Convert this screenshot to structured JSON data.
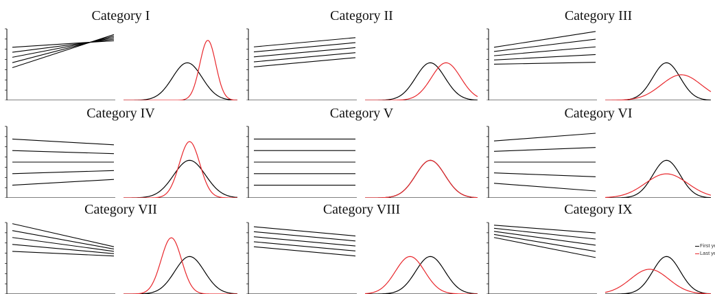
{
  "colors": {
    "first_year": "#000000",
    "last_year": "#e8262b",
    "axis": "#000000"
  },
  "legend": {
    "first_year_label": "First year",
    "last_year_label": "Last year"
  },
  "categories": [
    {
      "title": "Category I",
      "trend_lines": [
        {
          "start": 0.45,
          "end": 0.62
        },
        {
          "start": 0.32,
          "end": 0.66
        },
        {
          "start": 0.19,
          "end": 0.7
        },
        {
          "start": 0.05,
          "end": 0.74
        },
        {
          "start": -0.08,
          "end": 0.78
        }
      ],
      "first_year": {
        "mean": 0.56,
        "sd": 0.13,
        "peak": 0.5
      },
      "last_year": {
        "mean": 0.74,
        "sd": 0.07,
        "peak": 0.8
      }
    },
    {
      "title": "Category II",
      "trend_lines": [
        {
          "start": 0.46,
          "end": 0.7
        },
        {
          "start": 0.33,
          "end": 0.57
        },
        {
          "start": 0.2,
          "end": 0.44
        },
        {
          "start": 0.07,
          "end": 0.31
        },
        {
          "start": -0.06,
          "end": 0.18
        }
      ],
      "first_year": {
        "mean": 0.58,
        "sd": 0.13,
        "peak": 0.5
      },
      "last_year": {
        "mean": 0.72,
        "sd": 0.13,
        "peak": 0.5
      }
    },
    {
      "title": "Category III",
      "trend_lines": [
        {
          "start": 0.45,
          "end": 0.86
        },
        {
          "start": 0.34,
          "end": 0.66
        },
        {
          "start": 0.23,
          "end": 0.46
        },
        {
          "start": 0.12,
          "end": 0.26
        },
        {
          "start": 0.01,
          "end": 0.06
        }
      ],
      "first_year": {
        "mean": 0.58,
        "sd": 0.13,
        "peak": 0.5
      },
      "last_year": {
        "mean": 0.72,
        "sd": 0.19,
        "peak": 0.34
      }
    },
    {
      "title": "Category IV",
      "trend_lines": [
        {
          "start": 0.6,
          "end": 0.45
        },
        {
          "start": 0.3,
          "end": 0.22
        },
        {
          "start": 0.0,
          "end": 0.0
        },
        {
          "start": -0.3,
          "end": -0.22
        },
        {
          "start": -0.6,
          "end": -0.45
        }
      ],
      "first_year": {
        "mean": 0.58,
        "sd": 0.14,
        "peak": 0.5
      },
      "last_year": {
        "mean": 0.58,
        "sd": 0.09,
        "peak": 0.75
      }
    },
    {
      "title": "Category V",
      "trend_lines": [
        {
          "start": 0.6,
          "end": 0.6
        },
        {
          "start": 0.3,
          "end": 0.3
        },
        {
          "start": 0.0,
          "end": 0.0
        },
        {
          "start": -0.3,
          "end": -0.3
        },
        {
          "start": -0.6,
          "end": -0.6
        }
      ],
      "first_year": {
        "mean": 0.58,
        "sd": 0.13,
        "peak": 0.5
      },
      "last_year": {
        "mean": 0.58,
        "sd": 0.13,
        "peak": 0.5
      }
    },
    {
      "title": "Category VI",
      "trend_lines": [
        {
          "start": 0.55,
          "end": 0.75
        },
        {
          "start": 0.28,
          "end": 0.38
        },
        {
          "start": 0.0,
          "end": 0.0
        },
        {
          "start": -0.28,
          "end": -0.38
        },
        {
          "start": -0.55,
          "end": -0.75
        }
      ],
      "first_year": {
        "mean": 0.58,
        "sd": 0.13,
        "peak": 0.5
      },
      "last_year": {
        "mean": 0.58,
        "sd": 0.2,
        "peak": 0.32
      }
    },
    {
      "title": "Category VII",
      "trend_lines": [
        {
          "start": 0.9,
          "end": 0.3
        },
        {
          "start": 0.72,
          "end": 0.24
        },
        {
          "start": 0.54,
          "end": 0.18
        },
        {
          "start": 0.36,
          "end": 0.12
        },
        {
          "start": 0.18,
          "end": 0.06
        }
      ],
      "first_year": {
        "mean": 0.58,
        "sd": 0.13,
        "peak": 0.5
      },
      "last_year": {
        "mean": 0.42,
        "sd": 0.09,
        "peak": 0.75
      }
    },
    {
      "title": "Category VIII",
      "trend_lines": [
        {
          "start": 0.82,
          "end": 0.58
        },
        {
          "start": 0.69,
          "end": 0.45
        },
        {
          "start": 0.56,
          "end": 0.32
        },
        {
          "start": 0.43,
          "end": 0.19
        },
        {
          "start": 0.3,
          "end": 0.06
        }
      ],
      "first_year": {
        "mean": 0.58,
        "sd": 0.13,
        "peak": 0.5
      },
      "last_year": {
        "mean": 0.4,
        "sd": 0.13,
        "peak": 0.5
      }
    },
    {
      "title": "Category IX",
      "trend_lines": [
        {
          "start": 0.86,
          "end": 0.66
        },
        {
          "start": 0.78,
          "end": 0.5
        },
        {
          "start": 0.7,
          "end": 0.34
        },
        {
          "start": 0.62,
          "end": 0.18
        },
        {
          "start": 0.54,
          "end": 0.02
        }
      ],
      "first_year": {
        "mean": 0.58,
        "sd": 0.13,
        "peak": 0.5
      },
      "last_year": {
        "mean": 0.42,
        "sd": 0.18,
        "peak": 0.33
      }
    }
  ]
}
